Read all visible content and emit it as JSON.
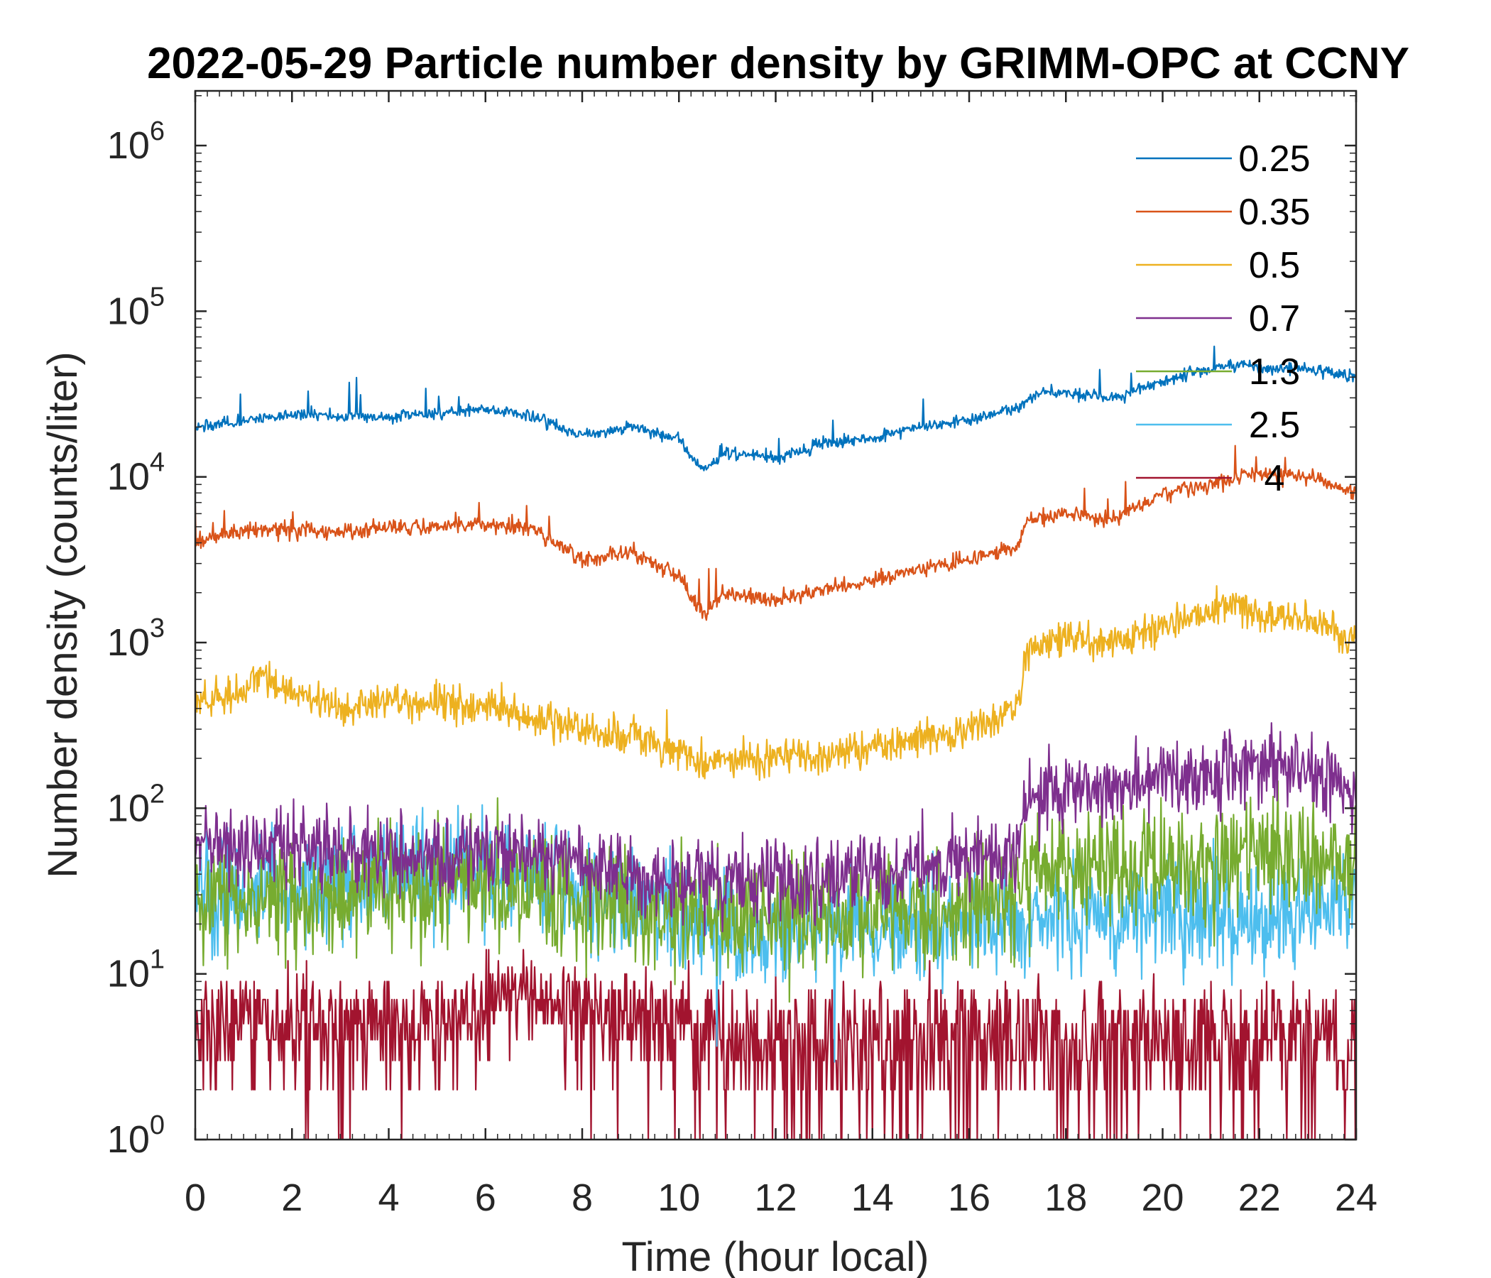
{
  "chart_data": {
    "type": "line",
    "title": "2022-05-29 Particle number density by GRIMM-OPC at CCNY",
    "xlabel": "Time (hour local)",
    "ylabel": "Number density (counts/liter)",
    "xlim": [
      0,
      24
    ],
    "ylim": [
      1,
      2000000
    ],
    "yscale": "log",
    "x_ticks": [
      0,
      2,
      4,
      6,
      8,
      10,
      12,
      14,
      16,
      18,
      20,
      22,
      24
    ],
    "x_tick_labels": [
      "0",
      "2",
      "4",
      "6",
      "8",
      "10",
      "12",
      "14",
      "16",
      "18",
      "20",
      "22",
      "24"
    ],
    "y_ticks": [
      1,
      10,
      100,
      1000,
      10000,
      100000,
      1000000
    ],
    "y_tick_labels": [
      {
        "base": "10",
        "exp": "0"
      },
      {
        "base": "10",
        "exp": "1"
      },
      {
        "base": "10",
        "exp": "2"
      },
      {
        "base": "10",
        "exp": "3"
      },
      {
        "base": "10",
        "exp": "4"
      },
      {
        "base": "10",
        "exp": "5"
      },
      {
        "base": "10",
        "exp": "6"
      }
    ],
    "legend_position": "top-right",
    "grid": false,
    "series": [
      {
        "name": "0.25",
        "color": "#0072BD",
        "x": [
          0,
          1,
          2,
          3,
          4,
          5,
          6,
          7,
          8,
          9,
          10,
          10.5,
          11,
          12,
          13,
          14,
          15,
          16,
          17,
          17.5,
          18,
          19,
          20,
          21,
          21.7,
          22,
          23,
          24
        ],
        "y": [
          20000,
          22000,
          24000,
          23000,
          23000,
          24000,
          26000,
          23000,
          18000,
          20000,
          17000,
          11000,
          14000,
          13000,
          16000,
          17000,
          20000,
          22000,
          26000,
          33000,
          32000,
          30000,
          38000,
          45000,
          48000,
          45000,
          45000,
          40000
        ]
      },
      {
        "name": "0.35",
        "color": "#D95319",
        "x": [
          0,
          1,
          2,
          3,
          4,
          5,
          6,
          7,
          8,
          9,
          10,
          10.5,
          11,
          12,
          13,
          14,
          15,
          16,
          17,
          17.2,
          18,
          19,
          20,
          21,
          22,
          23,
          24
        ],
        "y": [
          4000,
          4800,
          4800,
          4600,
          5000,
          5000,
          5200,
          4800,
          3200,
          3500,
          2500,
          1500,
          2000,
          1800,
          2100,
          2400,
          2800,
          3200,
          3800,
          5500,
          6000,
          5500,
          8000,
          9000,
          10500,
          10000,
          8000
        ]
      },
      {
        "name": "0.5",
        "color": "#EDB120",
        "x": [
          0,
          1,
          1.2,
          2,
          3,
          4,
          5,
          6,
          7,
          8,
          9,
          10,
          10.5,
          11,
          12,
          13,
          14,
          15,
          16,
          17,
          17.2,
          18,
          19,
          20,
          21,
          21.5,
          22,
          23,
          24
        ],
        "y": [
          450,
          500,
          650,
          520,
          400,
          450,
          420,
          430,
          350,
          300,
          280,
          220,
          180,
          200,
          200,
          210,
          230,
          260,
          300,
          400,
          900,
          1050,
          1000,
          1300,
          1500,
          1800,
          1500,
          1400,
          1000
        ]
      },
      {
        "name": "0.7",
        "color": "#7E2F8E",
        "x": [
          0,
          2,
          4,
          6,
          8,
          10,
          12,
          14,
          16,
          17,
          17.2,
          18,
          19,
          20,
          21,
          22,
          23,
          24
        ],
        "y": [
          60,
          60,
          50,
          55,
          45,
          35,
          35,
          40,
          48,
          55,
          120,
          130,
          140,
          150,
          160,
          190,
          160,
          120
        ]
      },
      {
        "name": "1.3",
        "color": "#77AC30",
        "x": [
          0,
          2,
          4,
          6,
          8,
          10,
          12,
          14,
          16,
          17,
          17.2,
          18,
          19,
          20,
          21,
          22,
          23,
          24
        ],
        "y": [
          28,
          30,
          32,
          34,
          30,
          22,
          22,
          25,
          28,
          30,
          42,
          45,
          42,
          48,
          45,
          50,
          48,
          45
        ]
      },
      {
        "name": "2.5",
        "color": "#4DBEEE",
        "x": [
          0,
          2,
          4,
          6,
          8,
          10,
          12,
          14,
          16,
          18,
          20,
          22,
          24
        ],
        "y": [
          30,
          35,
          38,
          40,
          32,
          22,
          18,
          20,
          20,
          22,
          22,
          22,
          25
        ]
      },
      {
        "name": "4",
        "color": "#A2142F",
        "x": [
          0,
          2,
          4,
          6,
          6.8,
          7,
          8,
          10,
          12,
          14,
          16,
          18,
          20,
          22,
          24
        ],
        "y": [
          5,
          5,
          5,
          6,
          8,
          7,
          6,
          5,
          4,
          4,
          4,
          4,
          4,
          4,
          4
        ]
      }
    ]
  }
}
